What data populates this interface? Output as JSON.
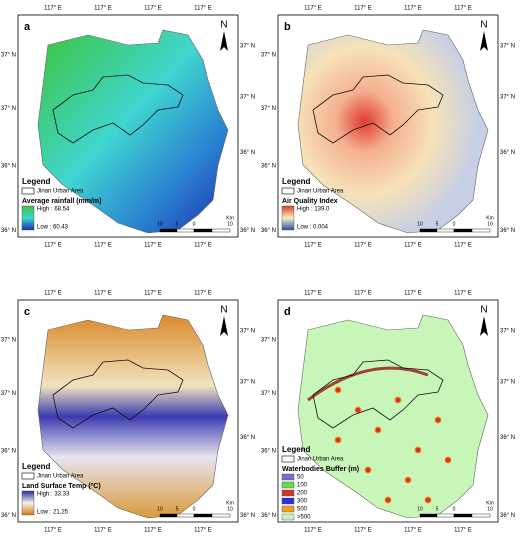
{
  "panels": [
    {
      "label": "a",
      "top_ticks": [
        "117° E",
        "117° E",
        "117° E",
        "117° E"
      ],
      "bottom_ticks": [
        "117° E",
        "117° E",
        "117° E",
        "117° E"
      ],
      "left_ticks": [
        "37° N",
        "37° N",
        "36° N",
        "36° N"
      ],
      "right_ticks": [
        "37° N",
        "37° N",
        "36° N",
        "36° N"
      ],
      "north": "N",
      "scale": {
        "unit": "Km",
        "labels": [
          "10",
          "5",
          "0",
          "10"
        ]
      },
      "legend": {
        "title": "Legend",
        "boundary": "Jinan Urban Area",
        "layer": "Average rainfall (mm/m)",
        "high": "High : 68.54",
        "low": "Low : 60.43"
      }
    },
    {
      "label": "b",
      "top_ticks": [
        "117° E",
        "117° E",
        "117° E",
        "117° E"
      ],
      "bottom_ticks": [
        "117° E",
        "117° E",
        "117° E",
        "117° E"
      ],
      "left_ticks": [
        "37° N",
        "37° N",
        "36° N",
        "36° N"
      ],
      "right_ticks": [
        "37° N",
        "37° N",
        "36° N",
        "36° N"
      ],
      "north": "N",
      "scale": {
        "unit": "Km",
        "labels": [
          "10",
          "5",
          "0",
          "10"
        ]
      },
      "legend": {
        "title": "Legend",
        "boundary": "Jinan Urban Area",
        "layer": "Air Quality Index",
        "high": "High : 139.0",
        "low": "Low : 0.004"
      }
    },
    {
      "label": "c",
      "top_ticks": [
        "117° E",
        "117° E",
        "117° E",
        "117° E"
      ],
      "bottom_ticks": [
        "117° E",
        "117° E",
        "117° E",
        "117° E"
      ],
      "left_ticks": [
        "37° N",
        "37° N",
        "36° N",
        "36° N"
      ],
      "right_ticks": [
        "37° N",
        "37° N",
        "36° N",
        "36° N"
      ],
      "north": "N",
      "scale": {
        "unit": "Km",
        "labels": [
          "10",
          "5",
          "0",
          "10"
        ]
      },
      "legend": {
        "title": "Legend",
        "boundary": "Jinan Urban Area",
        "layer": "Land Surface Temp (ºC)",
        "high": "High : 33.33",
        "low": "Low : 21.25"
      }
    },
    {
      "label": "d",
      "top_ticks": [
        "117° E",
        "117° E",
        "117° E",
        "117° E"
      ],
      "bottom_ticks": [
        "117° E",
        "117° E",
        "117° E",
        "117° E"
      ],
      "left_ticks": [
        "37° N",
        "37° N",
        "36° N",
        "36° N"
      ],
      "right_ticks": [
        "37° N",
        "37° N",
        "36° N",
        "36° N"
      ],
      "north": "N",
      "scale": {
        "unit": "Km",
        "labels": [
          "10",
          "5",
          "0",
          "10"
        ]
      },
      "legend": {
        "title": "Legend",
        "boundary": "Jinan Urban Area",
        "layer": "Waterbodies Buffer (m)",
        "classes": [
          {
            "label": "50",
            "color": "#7b6fc9"
          },
          {
            "label": "100",
            "color": "#66dd44"
          },
          {
            "label": "200",
            "color": "#d8322a"
          },
          {
            "label": "300",
            "color": "#2233dd"
          },
          {
            "label": "500",
            "color": "#f0a020"
          },
          {
            "label": ">500",
            "color": "#c8f5b8"
          }
        ]
      }
    }
  ]
}
